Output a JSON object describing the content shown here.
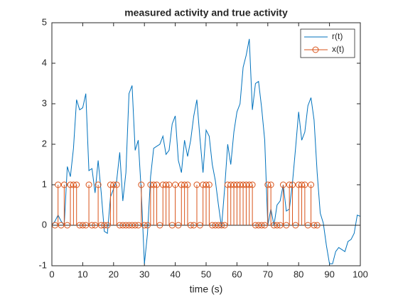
{
  "chart_data": {
    "type": "line_stem",
    "title": "measured activity and true activity",
    "xlabel": "time (s)",
    "xlim": [
      0,
      100
    ],
    "ylim": [
      -1,
      5
    ],
    "xticks": [
      0,
      10,
      20,
      30,
      40,
      50,
      60,
      70,
      80,
      90,
      100
    ],
    "yticks": [
      -1,
      0,
      1,
      2,
      3,
      4,
      5
    ],
    "legend": "northeast",
    "series": [
      {
        "name": "r(t)",
        "kind": "line",
        "color": "#0072BD",
        "x": [
          0,
          1,
          2,
          3,
          4,
          5,
          6,
          7,
          8,
          9,
          10,
          11,
          12,
          13,
          14,
          15,
          16,
          17,
          18,
          19,
          20,
          21,
          22,
          23,
          24,
          25,
          26,
          27,
          28,
          29,
          30,
          31,
          32,
          33,
          34,
          35,
          36,
          37,
          38,
          39,
          40,
          41,
          42,
          43,
          44,
          45,
          46,
          47,
          48,
          49,
          50,
          51,
          52,
          53,
          54,
          55,
          56,
          57,
          58,
          59,
          60,
          61,
          62,
          63,
          64,
          65,
          66,
          67,
          68,
          69,
          70,
          71,
          72,
          73,
          74,
          75,
          76,
          77,
          78,
          79,
          80,
          81,
          82,
          83,
          84,
          85,
          86,
          87,
          88,
          89,
          90,
          91,
          92,
          93,
          94,
          95,
          96,
          97,
          98,
          99,
          100
        ],
        "values": [
          0,
          0.1,
          0.25,
          0.1,
          0,
          1.45,
          1.2,
          1.9,
          3.1,
          2.85,
          2.9,
          3.25,
          1.35,
          1.4,
          0.8,
          1.6,
          0.8,
          -0.15,
          -0.2,
          0.7,
          0.9,
          1.1,
          1.8,
          0.6,
          1.3,
          3.25,
          3.45,
          1.85,
          2.1,
          0.8,
          -0.95,
          -0.2,
          1.2,
          1.9,
          1.95,
          2.0,
          2.2,
          1.75,
          1.85,
          2.5,
          2.7,
          1.6,
          1.3,
          2.1,
          1.7,
          2.1,
          2.7,
          3.1,
          2.15,
          1.3,
          2.35,
          2.2,
          1.5,
          1.1,
          0.5,
          -0.05,
          0.9,
          2.0,
          1.5,
          2.3,
          2.8,
          3.0,
          3.9,
          4.2,
          4.6,
          2.85,
          3.5,
          3.55,
          2.9,
          2.1,
          0,
          0.4,
          0,
          0.5,
          0.6,
          1.0,
          0.35,
          0.4,
          1.05,
          1.9,
          2.8,
          2.1,
          2.3,
          2.95,
          3.15,
          2.6,
          1.3,
          0.3,
          0.05,
          -0.5,
          -0.95,
          -0.95,
          -0.65,
          -0.55,
          -0.6,
          -0.65,
          -0.4,
          -0.35,
          -0.2,
          0.25,
          0.22
        ]
      },
      {
        "name": "x(t)",
        "kind": "stem",
        "color": "#D95319",
        "x": [
          1,
          2,
          3,
          4,
          5,
          6,
          7,
          8,
          9,
          10,
          11,
          12,
          13,
          14,
          15,
          16,
          17,
          18,
          19,
          20,
          21,
          22,
          23,
          24,
          25,
          26,
          27,
          28,
          29,
          30,
          31,
          32,
          33,
          34,
          35,
          36,
          37,
          38,
          39,
          40,
          41,
          42,
          43,
          44,
          45,
          46,
          47,
          48,
          49,
          50,
          51,
          52,
          53,
          54,
          55,
          56,
          57,
          58,
          59,
          60,
          61,
          62,
          63,
          64,
          65,
          66,
          67,
          68,
          69,
          70,
          71,
          72,
          73,
          74,
          75,
          76,
          77,
          78,
          79,
          80,
          81,
          82,
          83,
          84,
          85,
          86
        ],
        "values": [
          0,
          1,
          0,
          1,
          0,
          1,
          1,
          1,
          0,
          0,
          0,
          1,
          0,
          0,
          1,
          0,
          0,
          0,
          1,
          1,
          1,
          0,
          0,
          0,
          0,
          0,
          0,
          0,
          1,
          0,
          0,
          1,
          1,
          1,
          0,
          1,
          1,
          1,
          0,
          1,
          0,
          1,
          1,
          1,
          0,
          0,
          1,
          0,
          1,
          1,
          1,
          0,
          0,
          0,
          0,
          0,
          1,
          1,
          1,
          1,
          1,
          1,
          1,
          1,
          1,
          0,
          0,
          0,
          0,
          1,
          1,
          0,
          0,
          0,
          1,
          0,
          1,
          1,
          0,
          1,
          1,
          1,
          0,
          1,
          0,
          0
        ]
      }
    ]
  }
}
